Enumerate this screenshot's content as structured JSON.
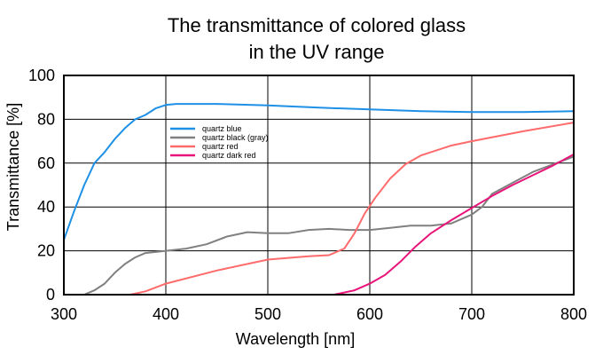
{
  "chart_data": {
    "type": "line",
    "title_lines": [
      "The transmittance of colored glass",
      "in the UV range"
    ],
    "xlabel": "Wavelength [nm]",
    "ylabel": "Transmittance [%]",
    "xlim": [
      300,
      800
    ],
    "ylim": [
      0,
      100
    ],
    "xticks": [
      300,
      400,
      500,
      600,
      700,
      800
    ],
    "yticks": [
      0,
      20,
      40,
      60,
      80,
      100
    ],
    "grid": true,
    "legend_position": "upper-left inside plot",
    "series": [
      {
        "name": "quartz blue",
        "color": "#1e90e6",
        "points": [
          [
            300,
            25
          ],
          [
            310,
            38
          ],
          [
            320,
            50
          ],
          [
            330,
            60
          ],
          [
            340,
            65
          ],
          [
            350,
            71
          ],
          [
            360,
            76
          ],
          [
            370,
            80
          ],
          [
            380,
            82
          ],
          [
            390,
            85
          ],
          [
            400,
            86.5
          ],
          [
            410,
            87
          ],
          [
            430,
            87
          ],
          [
            450,
            87
          ],
          [
            500,
            86.3
          ],
          [
            550,
            85.3
          ],
          [
            600,
            84.5
          ],
          [
            650,
            83.7
          ],
          [
            700,
            83.3
          ],
          [
            750,
            83.3
          ],
          [
            800,
            83.7
          ]
        ]
      },
      {
        "name": "quartz black (gray)",
        "color": "#808080",
        "points": [
          [
            320,
            0
          ],
          [
            330,
            2
          ],
          [
            340,
            5
          ],
          [
            350,
            10
          ],
          [
            360,
            14
          ],
          [
            370,
            17
          ],
          [
            380,
            19
          ],
          [
            400,
            20
          ],
          [
            420,
            21
          ],
          [
            440,
            23
          ],
          [
            460,
            26.5
          ],
          [
            480,
            28.5
          ],
          [
            500,
            28
          ],
          [
            520,
            28
          ],
          [
            540,
            29.5
          ],
          [
            560,
            30
          ],
          [
            580,
            29.5
          ],
          [
            600,
            29.5
          ],
          [
            620,
            30.5
          ],
          [
            640,
            31.5
          ],
          [
            660,
            31.5
          ],
          [
            680,
            32.5
          ],
          [
            700,
            36.5
          ],
          [
            710,
            40
          ],
          [
            720,
            46
          ],
          [
            740,
            51
          ],
          [
            760,
            56
          ],
          [
            780,
            59.5
          ],
          [
            800,
            63
          ]
        ]
      },
      {
        "name": "quartz red",
        "color": "#ff6b6b",
        "points": [
          [
            365,
            0
          ],
          [
            380,
            1.5
          ],
          [
            400,
            5
          ],
          [
            450,
            11
          ],
          [
            500,
            16
          ],
          [
            540,
            17.5
          ],
          [
            560,
            18
          ],
          [
            575,
            21
          ],
          [
            585,
            28
          ],
          [
            595,
            37
          ],
          [
            605,
            44
          ],
          [
            620,
            53
          ],
          [
            635,
            59.5
          ],
          [
            650,
            63.5
          ],
          [
            680,
            68
          ],
          [
            700,
            70
          ],
          [
            750,
            74.5
          ],
          [
            800,
            78.5
          ]
        ]
      },
      {
        "name": "quartz dark red",
        "color": "#e8147a",
        "points": [
          [
            565,
            0
          ],
          [
            585,
            2
          ],
          [
            600,
            5
          ],
          [
            615,
            9
          ],
          [
            630,
            15
          ],
          [
            645,
            22
          ],
          [
            660,
            28
          ],
          [
            680,
            34
          ],
          [
            700,
            39.5
          ],
          [
            720,
            45
          ],
          [
            740,
            50
          ],
          [
            760,
            54.5
          ],
          [
            780,
            59
          ],
          [
            800,
            64
          ]
        ]
      }
    ]
  }
}
